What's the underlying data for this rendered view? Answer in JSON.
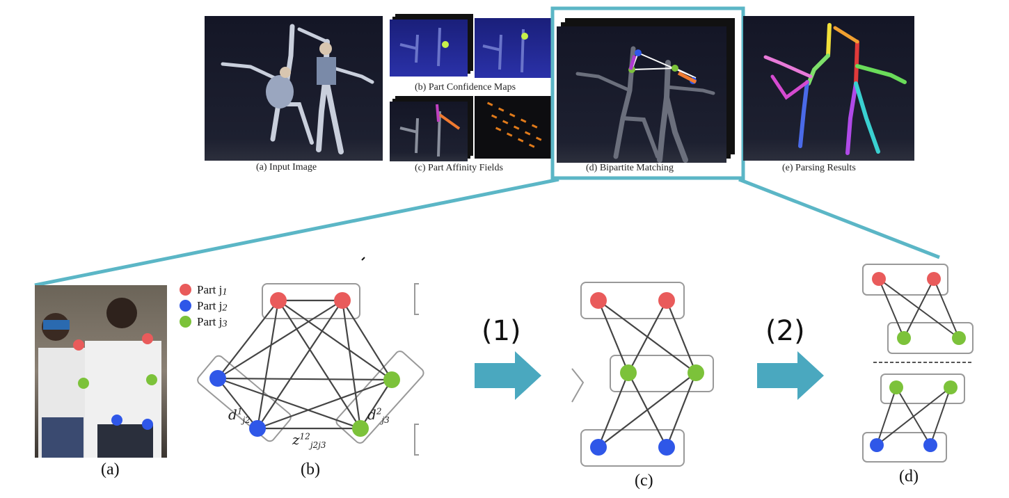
{
  "top_row": {
    "captions": {
      "input": "(a) Input Image",
      "confidence": "(b) Part Confidence Maps",
      "affinity": "(c) Part Affinity Fields",
      "matching": "(d) Bipartite Matching",
      "parsing": "(e) Parsing Results"
    }
  },
  "legend": {
    "items": [
      {
        "label": "Part  j",
        "sub": "1",
        "color": "#e95b5b"
      },
      {
        "label": "Part  j",
        "sub": "2",
        "color": "#2f57e8"
      },
      {
        "label": "Part  j",
        "sub": "3",
        "color": "#7cc23a"
      }
    ]
  },
  "graph_b": {
    "edge_label_left": {
      "base": "d",
      "sup": "1",
      "sub": "j2"
    },
    "edge_label_right": {
      "base": "d",
      "sup": "2",
      "sub": "j3"
    },
    "edge_label_bottom": {
      "base": "z",
      "sup": "12",
      "sub": "j2j3"
    }
  },
  "steps": {
    "step1": "(1)",
    "step2": "(2)"
  },
  "bottom_captions": {
    "a": "(a)",
    "b": "(b)",
    "c": "(c)",
    "d": "(d)"
  },
  "colors": {
    "red_node": "#e95b5b",
    "blue_node": "#2f57e8",
    "green_node": "#7cc23a",
    "accent_teal": "#5bb6c6",
    "arrow_teal": "#4aa8bf",
    "edge_gray": "#444444",
    "photo_dark": "#15161f"
  }
}
